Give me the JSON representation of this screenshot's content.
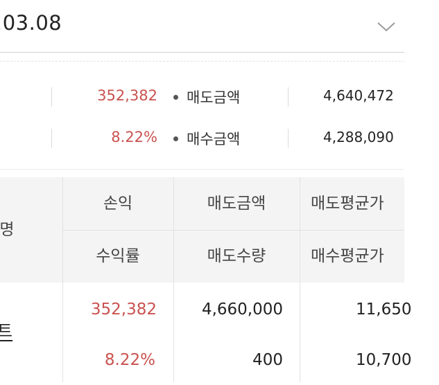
{
  "date_selector": {
    "value": ".03.08",
    "icon": "chevron-down-icon"
  },
  "summary": {
    "rows": [
      {
        "value": "352,382",
        "label": "매도금액",
        "amount": "4,640,472"
      },
      {
        "value": "8.22%",
        "label": "매수금액",
        "amount": "4,288,090"
      }
    ]
  },
  "table": {
    "headers": {
      "name": "명",
      "row1": [
        "손익",
        "매도금액",
        "매도평균가"
      ],
      "row2": [
        "수익률",
        "매도수량",
        "매수평균가"
      ]
    },
    "rows": [
      {
        "name": "트",
        "profit": "352,382",
        "sell_amount": "4,660,000",
        "sell_avg": "11,650",
        "rate": "8.22%",
        "sell_qty": "400",
        "buy_avg": "10,700"
      }
    ]
  },
  "colors": {
    "accent_red": "#c9524f",
    "header_bg": "#f4f4f4"
  }
}
